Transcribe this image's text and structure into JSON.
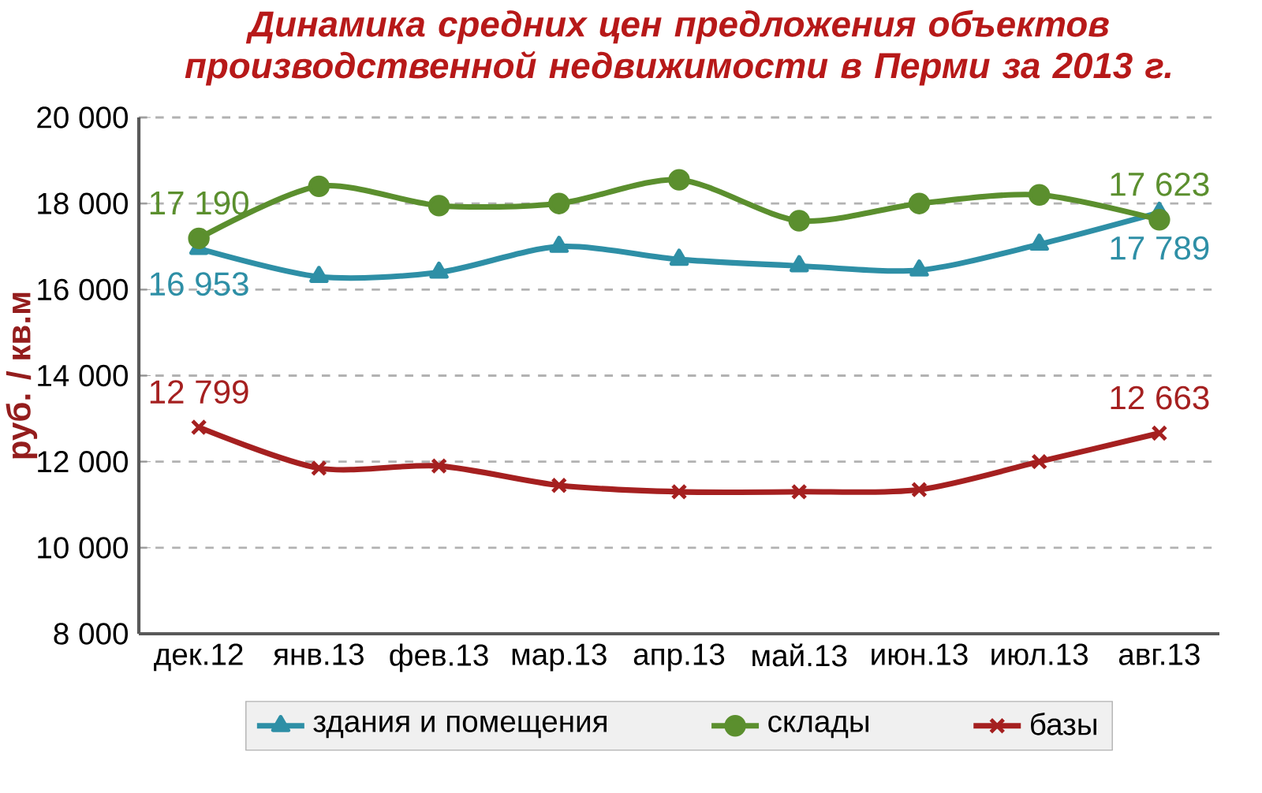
{
  "chart_data": {
    "type": "line",
    "title": "Динамика средних цен предложения объектов производственной недвижимости в Перми за 2013 г.",
    "ylabel": "руб. / кв.м",
    "categories": [
      "дек.12",
      "янв.13",
      "фев.13",
      "мар.13",
      "апр.13",
      "май.13",
      "июн.13",
      "июл.13",
      "авг.13"
    ],
    "series": [
      {
        "name": "здания и помещения",
        "color": "#2e8fa6",
        "marker": "triangle",
        "values": [
          16953,
          16300,
          16400,
          17000,
          16700,
          16550,
          16450,
          17050,
          17789
        ],
        "value_labels": [
          "16 953",
          null,
          null,
          null,
          null,
          null,
          null,
          null,
          "17 789"
        ]
      },
      {
        "name": "склады",
        "color": "#5b8f2e",
        "marker": "circle",
        "values": [
          17190,
          18400,
          17950,
          18000,
          18550,
          17600,
          18000,
          18200,
          17623
        ],
        "value_labels": [
          "17 190",
          null,
          null,
          null,
          null,
          null,
          null,
          null,
          "17 623"
        ]
      },
      {
        "name": "базы",
        "color": "#a52020",
        "marker": "cross",
        "values": [
          12799,
          11850,
          11900,
          11450,
          11300,
          11300,
          11350,
          12000,
          12663
        ],
        "value_labels": [
          "12 799",
          null,
          null,
          null,
          null,
          null,
          null,
          null,
          "12 663"
        ]
      }
    ],
    "ylim": [
      8000,
      20000
    ],
    "yticks": [
      {
        "value": 8000,
        "label": "8 000"
      },
      {
        "value": 10000,
        "label": "10 000"
      },
      {
        "value": 12000,
        "label": "12 000"
      },
      {
        "value": 14000,
        "label": "14 000"
      },
      {
        "value": 16000,
        "label": "16 000"
      },
      {
        "value": 18000,
        "label": "18 000"
      },
      {
        "value": 20000,
        "label": "20 000"
      }
    ],
    "grid": "y",
    "legend": "bottom",
    "line_style": "solid"
  }
}
